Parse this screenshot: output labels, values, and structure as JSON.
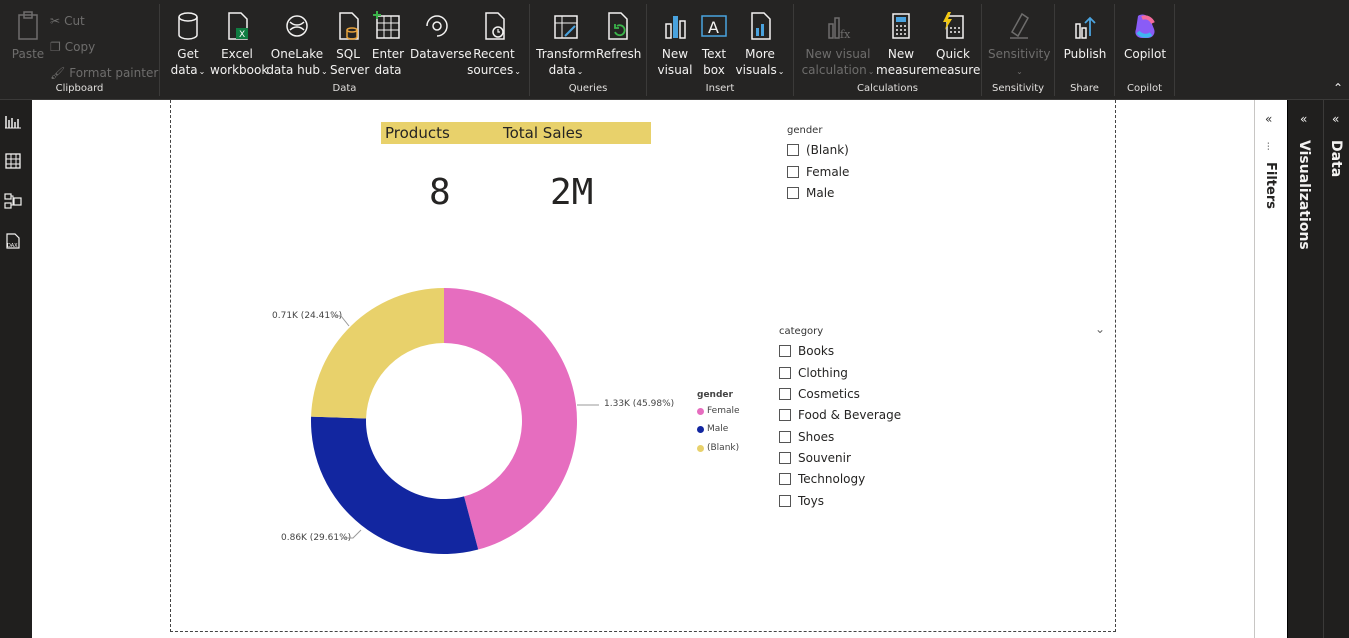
{
  "ribbon": {
    "clipboard": {
      "label": "Clipboard",
      "paste": "Paste",
      "cut": "Cut",
      "copy": "Copy",
      "format_painter": "Format painter"
    },
    "data": {
      "label": "Data",
      "get_data": [
        "Get",
        "data"
      ],
      "excel": [
        "Excel",
        "workbook"
      ],
      "onelake": [
        "OneLake",
        "data hub"
      ],
      "sql": [
        "SQL",
        "Server"
      ],
      "enter": [
        "Enter",
        "data"
      ],
      "dataverse": [
        "Dataverse",
        ""
      ],
      "recent": [
        "Recent",
        "sources"
      ]
    },
    "queries": {
      "label": "Queries",
      "transform": [
        "Transform",
        "data"
      ],
      "refresh": [
        "Refresh",
        ""
      ]
    },
    "insert": {
      "label": "Insert",
      "new_visual": [
        "New",
        "visual"
      ],
      "text_box": [
        "Text",
        "box"
      ],
      "more_visuals": [
        "More",
        "visuals"
      ]
    },
    "calculations": {
      "label": "Calculations",
      "new_visual_calc": [
        "New visual",
        "calculation"
      ],
      "new_measure": [
        "New",
        "measure"
      ],
      "quick_measure": [
        "Quick",
        "measure"
      ]
    },
    "sensitivity": {
      "label": "Sensitivity",
      "btn": [
        "Sensitivity",
        ""
      ]
    },
    "share": {
      "label": "Share",
      "publish": [
        "Publish",
        ""
      ]
    },
    "copilot": {
      "label": "Copilot",
      "btn": [
        "Copilot",
        ""
      ]
    }
  },
  "cards": {
    "products": {
      "title": "Products",
      "value": "8"
    },
    "total_sales": {
      "title": "Total Sales",
      "value": "2M"
    }
  },
  "gender_slicer": {
    "title": "gender",
    "items": [
      "(Blank)",
      "Female",
      "Male"
    ]
  },
  "category_slicer": {
    "title": "category",
    "items": [
      "Books",
      "Clothing",
      "Cosmetics",
      "Food & Beverage",
      "Shoes",
      "Souvenir",
      "Technology",
      "Toys"
    ]
  },
  "chart_data": {
    "type": "pie",
    "legend_title": "gender",
    "legend_position": "right",
    "categories": [
      "Female",
      "Male",
      "(Blank)"
    ],
    "values": [
      1.33,
      0.86,
      0.71
    ],
    "percentages": [
      45.98,
      29.61,
      24.41
    ],
    "data_labels": [
      "1.33K (45.98%)",
      "0.86K (29.61%)",
      "0.71K (24.41%)"
    ],
    "colors": [
      "#e66dbf",
      "#1226a0",
      "#e8d16b"
    ],
    "donut": true
  },
  "panes": {
    "filters": "Filters",
    "visualizations": "Visualizations",
    "data": "Data"
  }
}
